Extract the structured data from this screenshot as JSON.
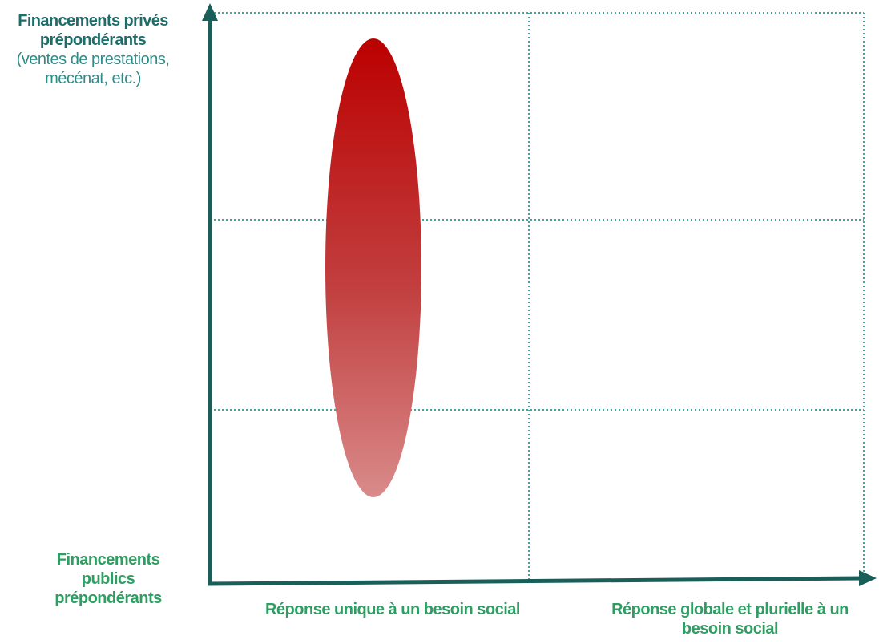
{
  "y_axis": {
    "top_label_bold": "Financements privés prépondérants",
    "top_label_detail": "(ventes de prestations, mécénat, etc.)",
    "bottom_label": "Financements publics prépondérants"
  },
  "x_axis": {
    "categories": [
      "Réponse unique à un besoin social",
      "Réponse globale et plurielle à un besoin social"
    ]
  },
  "colors": {
    "axis": "#1a5e5a",
    "grid": "#3aa8a0",
    "ellipse_top": "#bb0000",
    "ellipse_bottom": "#d98a8a",
    "label_dark": "#1d6e6a",
    "label_green": "#2e9e62"
  }
}
